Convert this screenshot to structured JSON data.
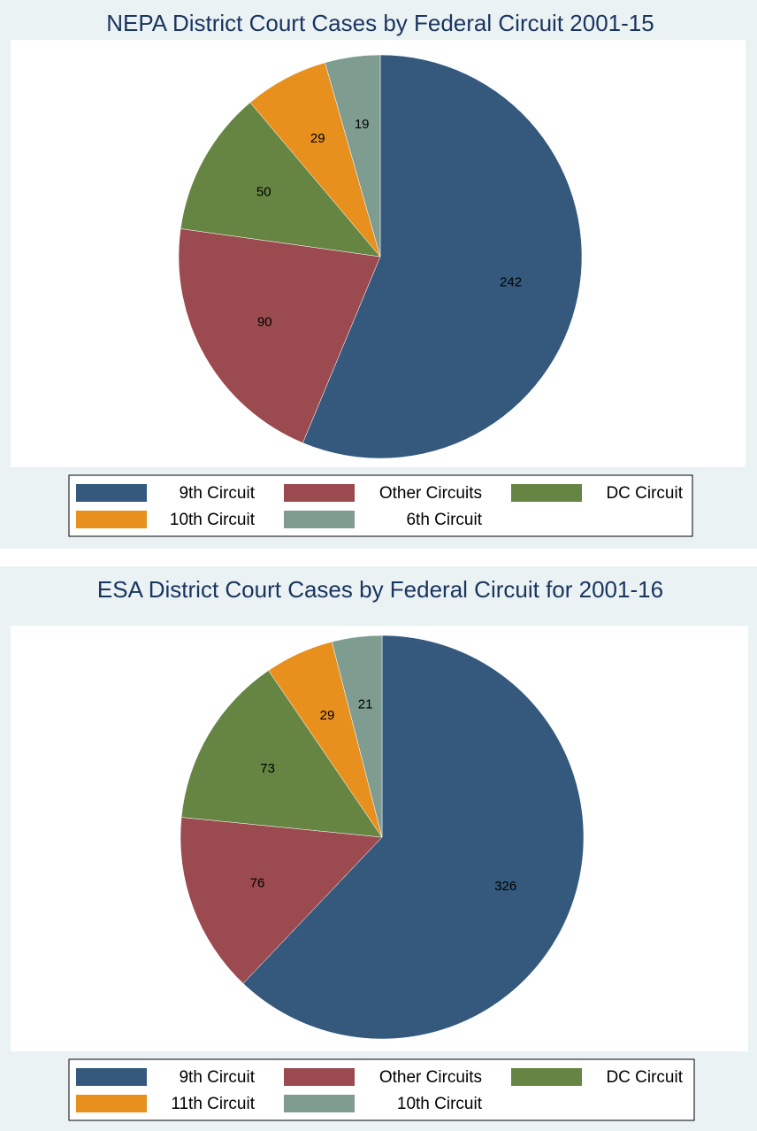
{
  "chart_data": [
    {
      "type": "pie",
      "title": "NEPA District Court Cases by Federal Circuit 2001-15",
      "categories": [
        "9th Circuit",
        "Other Circuits",
        "DC Circuit",
        "10th Circuit",
        "6th Circuit"
      ],
      "values": [
        242,
        90,
        50,
        29,
        19
      ],
      "colors": [
        "#34597d",
        "#9b4a4f",
        "#668543",
        "#e8901e",
        "#7f9c91"
      ]
    },
    {
      "type": "pie",
      "title": "ESA District Court Cases by Federal Circuit for 2001-16",
      "categories": [
        "9th Circuit",
        "Other Circuits",
        "DC Circuit",
        "11th Circuit",
        "10th Circuit"
      ],
      "values": [
        326,
        76,
        73,
        29,
        21
      ],
      "colors": [
        "#34597d",
        "#9b4a4f",
        "#668543",
        "#e8901e",
        "#7f9c91"
      ]
    }
  ]
}
